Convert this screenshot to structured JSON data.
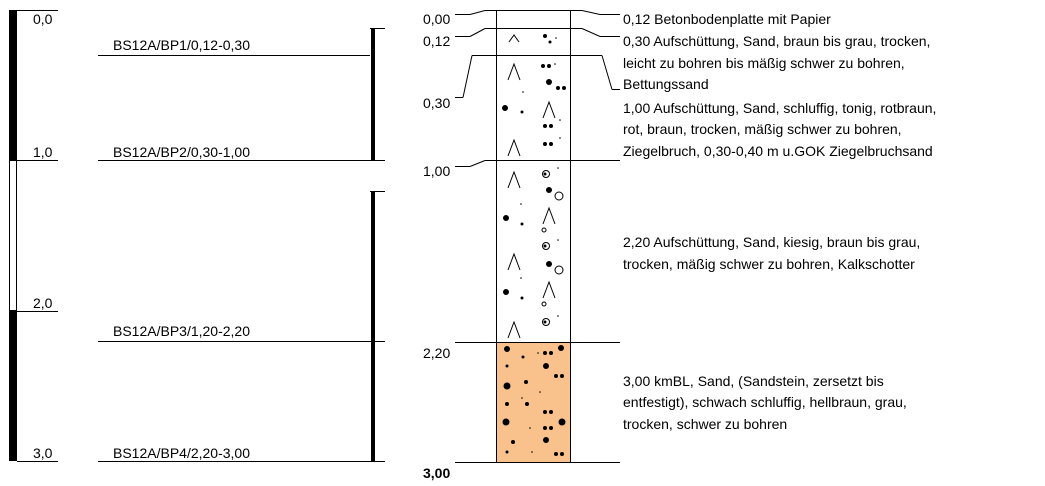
{
  "colors": {
    "ink": "#000000",
    "background": "#ffffff",
    "kmbl_fill": "#f9c28c"
  },
  "depth_scale": {
    "ticks": [
      {
        "label": "0,0",
        "depth": 0.0
      },
      {
        "label": "1,0",
        "depth": 1.0
      },
      {
        "label": "2,0",
        "depth": 2.0
      },
      {
        "label": "3,0",
        "depth": 3.0
      }
    ]
  },
  "samples": [
    {
      "label": "BS12A/BP1/0,12-0,30",
      "from": 0.12,
      "to": 0.3
    },
    {
      "label": "BS12A/BP2/0,30-1,00",
      "from": 0.3,
      "to": 1.0
    },
    {
      "label": "BS12A/BP3/1,20-2,20",
      "from": 1.2,
      "to": 2.2
    },
    {
      "label": "BS12A/BP4/2,20-3,00",
      "from": 2.2,
      "to": 3.0
    }
  ],
  "layer_boundaries": [
    {
      "label": "0,00",
      "depth": 0.0
    },
    {
      "label": "0,12",
      "depth": 0.12
    },
    {
      "label": "0,30",
      "depth": 0.3
    },
    {
      "label": "1,00",
      "depth": 1.0
    },
    {
      "label": "2,20",
      "depth": 2.2
    }
  ],
  "final_depth": {
    "label": "3,00",
    "depth": 3.0
  },
  "layers": [
    {
      "bottom": 0.12,
      "lines": [
        "0,12  Betonbodenplatte mit Papier"
      ]
    },
    {
      "bottom": 0.3,
      "lines": [
        "0,30  Aufschüttung, Sand, braun bis grau, trocken,",
        "leicht zu bohren bis mäßig schwer zu bohren,",
        "Bettungssand"
      ]
    },
    {
      "bottom": 1.0,
      "lines": [
        "1,00  Aufschüttung, Sand, schluffig, tonig, rotbraun,",
        "rot, braun, trocken, mäßig schwer zu bohren,",
        "Ziegelbruch, 0,30-0,40 m u.GOK Ziegelbruchsand"
      ]
    },
    {
      "bottom": 2.2,
      "lines": [
        "2,20  Aufschüttung, Sand, kiesig, braun bis grau,",
        "trocken, mäßig schwer zu bohren, Kalkschotter"
      ]
    },
    {
      "bottom": 3.0,
      "lines": [
        "3,00  kmBL, Sand, (Sandstein, zersetzt bis",
        "entfestigt), schwach schluffig, hellbraun, grau,",
        "trocken, schwer zu bohren"
      ]
    }
  ]
}
